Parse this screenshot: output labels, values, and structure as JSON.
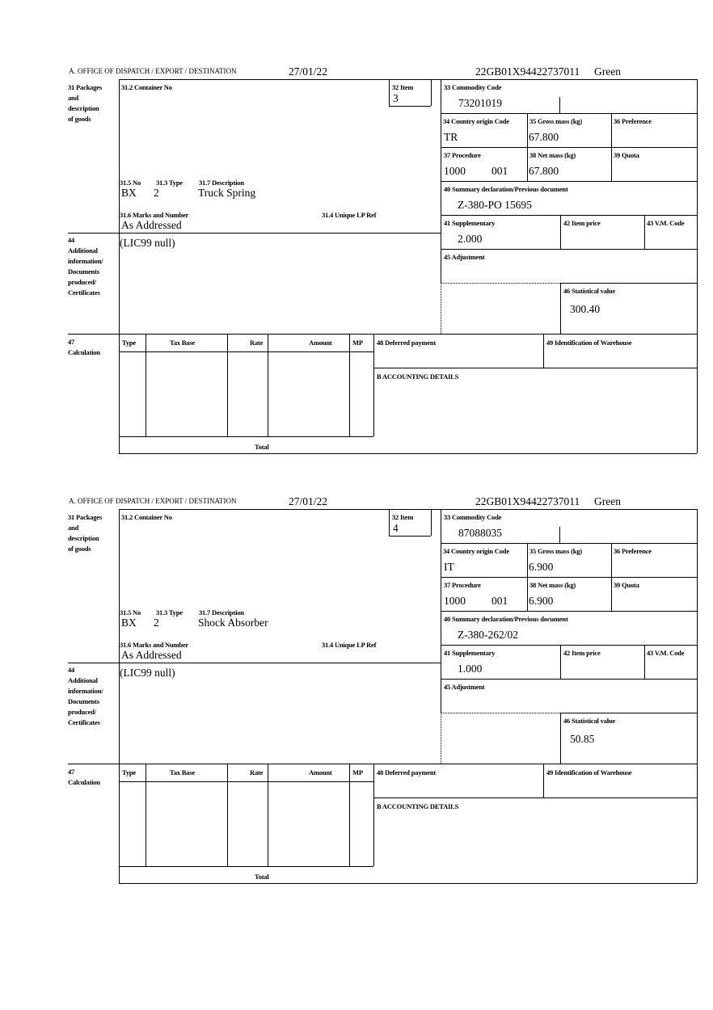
{
  "labels": {
    "office": "A.  OFFICE OF DISPATCH / EXPORT / DESTINATION",
    "packages": "31 Packages\nand\ndescription\nof goods",
    "container_no": "31.2 Container No",
    "item": "32 Item",
    "commodity_code": "33 Commodity Code",
    "country_origin": "34 Country origin Code",
    "gross_mass": "35 Gross mass (kg)",
    "preference": "36 Preference",
    "procedure": "37 Procedure",
    "net_mass": "38 Net mass (kg)",
    "quota": "39 Quota",
    "summary_decl": "40 Summary declaration/Previous document",
    "supplementary": "41 Supplementary",
    "item_price": "42 Item price",
    "vm_code": "43 V.M. Code",
    "adjustment": "45 Adjustment",
    "statistical_value": "46 Statistical value",
    "no": "31.5 No",
    "type": "31.3 Type",
    "description": "31.7 Description",
    "marks": "31.6 Marks and Number",
    "unique_lp": "31.4 Unique LP Ref",
    "additional": "44\nAdditional\ninformation/\nDocuments\nproduced/\nCertificates",
    "calculation": "47\nCalculation",
    "col_type": "Type",
    "col_tax_base": "Tax Base",
    "col_rate": "Rate",
    "col_amount": "Amount",
    "col_mp": "MP",
    "deferred_payment": "48 Deferred payment",
    "warehouse": "49 Identification of Warehouse",
    "accounting": "B ACCOUNTING DETAILS",
    "total": "Total"
  },
  "items": [
    {
      "date": "27/01/22",
      "reference": "22GB01X94422737011",
      "route": "Green",
      "item_no": "3",
      "commodity_code": "73201019",
      "country": "TR",
      "gross_mass": "67.800",
      "procedure": "1000",
      "procedure_sub": "001",
      "net_mass": "67.800",
      "previous_document": "Z-380-PO 15695",
      "supplementary": "2.000",
      "statistical_value": "300.40",
      "pkg_no": "BX",
      "pkg_type": "2",
      "description": "Truck Spring",
      "marks": "As Addressed",
      "additional_info": "(LIC99 null)"
    },
    {
      "date": "27/01/22",
      "reference": "22GB01X94422737011",
      "route": "Green",
      "item_no": "4",
      "commodity_code": "87088035",
      "country": "IT",
      "gross_mass": "6.900",
      "procedure": "1000",
      "procedure_sub": "001",
      "net_mass": "6.900",
      "previous_document": "Z-380-262/02",
      "supplementary": "1.000",
      "statistical_value": "50.85",
      "pkg_no": "BX",
      "pkg_type": "2",
      "description": "Shock Absorber",
      "marks": "As Addressed",
      "additional_info": "(LIC99 null)"
    }
  ]
}
